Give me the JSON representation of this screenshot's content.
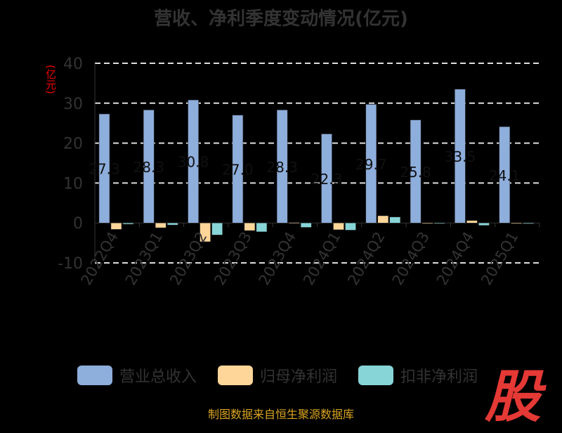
{
  "chart_data": {
    "type": "bar",
    "title": "营收、净利季度变动情况(亿元)",
    "ylabel": "(亿元)",
    "ylim": [
      -10,
      40
    ],
    "yticks": [
      -10,
      0,
      10,
      20,
      30,
      40
    ],
    "categories": [
      "2022Q4",
      "2023Q1",
      "2023Q2",
      "2023Q3",
      "2023Q4",
      "2024Q1",
      "2024Q2",
      "2024Q3",
      "2024Q4",
      "2025Q1"
    ],
    "series": [
      {
        "name": "营业总收入",
        "color": "#8eaedc",
        "values": [
          27.3,
          28.3,
          30.8,
          27.0,
          28.3,
          22.3,
          29.7,
          25.8,
          33.5,
          24.1
        ]
      },
      {
        "name": "归母净利润",
        "color": "#ffd699",
        "values": [
          -1.6,
          -1.2,
          -4.7,
          -1.9,
          0.1,
          -1.7,
          1.8,
          0.0,
          0.6,
          -0.1
        ]
      },
      {
        "name": "扣非净利润",
        "color": "#88d5d8",
        "values": [
          -0.3,
          -0.5,
          -3.0,
          -2.2,
          -1.1,
          -1.8,
          1.5,
          0.0,
          -0.6,
          -0.2
        ]
      }
    ],
    "data_labels": [
      "27.3",
      "28.3",
      "30.8",
      "27.0",
      "28.3",
      "22.3",
      "29.7",
      "25.8",
      "33.5",
      "24.1"
    ],
    "grid": true,
    "legend_position": "bottom"
  },
  "source": "制图数据来自恒生聚源数据库",
  "logo": "股"
}
